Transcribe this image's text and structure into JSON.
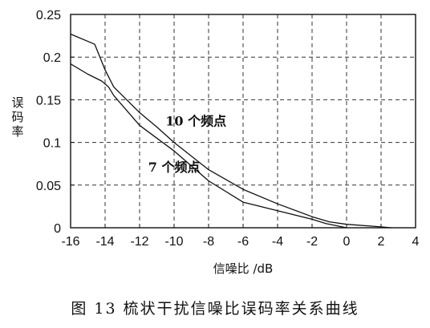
{
  "caption": "图 13   梳状干扰信噪比误码率关系曲线",
  "chart_data": {
    "type": "line",
    "xlabel": "信噪比 /dB",
    "ylabel": "误码率",
    "xlim": [
      -16,
      4
    ],
    "ylim": [
      0,
      0.25
    ],
    "xticks": [
      -16,
      -14,
      -12,
      -10,
      -8,
      -6,
      -4,
      -2,
      0,
      2,
      4
    ],
    "xtick_labels": [
      "-16",
      "-14",
      "-12",
      "-10",
      "-8",
      "-6",
      "-4",
      "-2",
      "0",
      "2",
      "4"
    ],
    "yticks": [
      0,
      0.05,
      0.1,
      0.15,
      0.2,
      0.25
    ],
    "ytick_labels": [
      "0",
      "0.05",
      "0.1",
      "0.15",
      "0.2",
      "0.25"
    ],
    "grid": true,
    "grid_style": "dashed",
    "series": [
      {
        "name": "10 个频点",
        "x": [
          -16,
          -14.6,
          -14,
          -13.5,
          -12,
          -11,
          -10,
          -8,
          -6,
          -4,
          -2,
          -1,
          0,
          2,
          2.6
        ],
        "y": [
          0.227,
          0.215,
          0.185,
          0.165,
          0.135,
          0.118,
          0.1,
          0.068,
          0.045,
          0.028,
          0.013,
          0.007,
          0.004,
          0.001,
          0.0
        ]
      },
      {
        "name": "7 个频点",
        "x": [
          -16,
          -15,
          -14.2,
          -13.8,
          -13.5,
          -12,
          -11,
          -10,
          -8,
          -6,
          -4,
          -2,
          -1.2,
          0
        ],
        "y": [
          0.192,
          0.18,
          0.172,
          0.165,
          0.155,
          0.12,
          0.105,
          0.09,
          0.055,
          0.03,
          0.02,
          0.01,
          0.005,
          0.0
        ]
      }
    ],
    "annotations": [
      {
        "text": "10 个频点",
        "x": -10.5,
        "y": 0.12
      },
      {
        "text": "7 个频点",
        "x": -11.5,
        "y": 0.066
      }
    ]
  }
}
